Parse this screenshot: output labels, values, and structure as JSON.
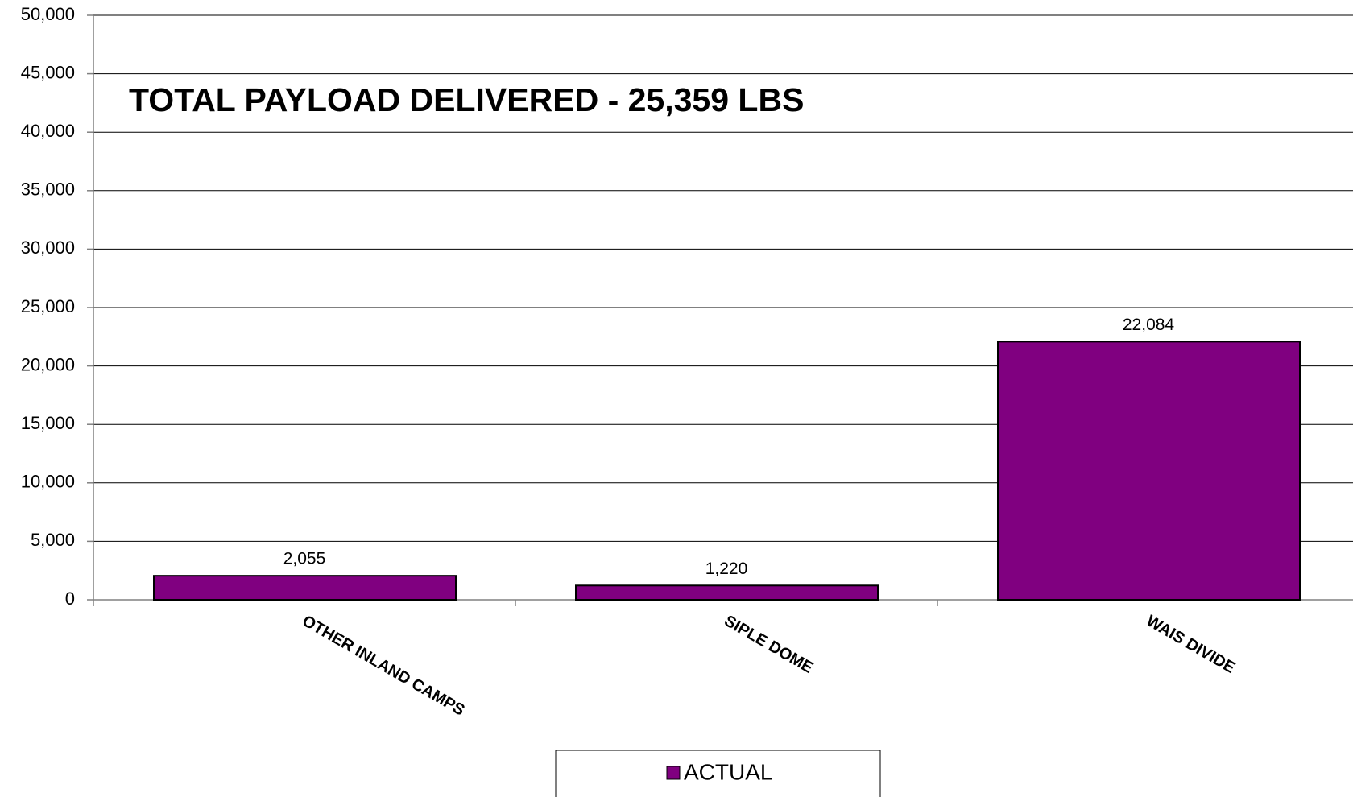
{
  "chart_data": {
    "type": "bar",
    "title": "TOTAL PAYLOAD DELIVERED -  25,359 LBS",
    "categories": [
      "OTHER INLAND CAMPS",
      "SIPLE DOME",
      "WAIS DIVIDE"
    ],
    "series": [
      {
        "name": "ACTUAL",
        "color": "#800080",
        "values": [
          2055,
          1220,
          22084
        ],
        "value_labels": [
          "2,055",
          "1,220",
          "22,084"
        ]
      }
    ],
    "ylim": [
      0,
      50000
    ],
    "yticks": [
      0,
      {
        "value": 5000,
        "label": "5,000"
      },
      {
        "value": 10000,
        "label": "10,000"
      },
      {
        "value": 15000,
        "label": "15,000"
      },
      {
        "value": 20000,
        "label": "20,000"
      },
      {
        "value": 25000,
        "label": "25,000"
      },
      {
        "value": 30000,
        "label": "30,000"
      },
      {
        "value": 35000,
        "label": "35,000"
      },
      {
        "value": 40000,
        "label": "40,000"
      },
      {
        "value": 45000,
        "label": "45,000"
      },
      {
        "value": 50000,
        "label": "50,000"
      }
    ],
    "grid": true,
    "legend": "bottom"
  }
}
